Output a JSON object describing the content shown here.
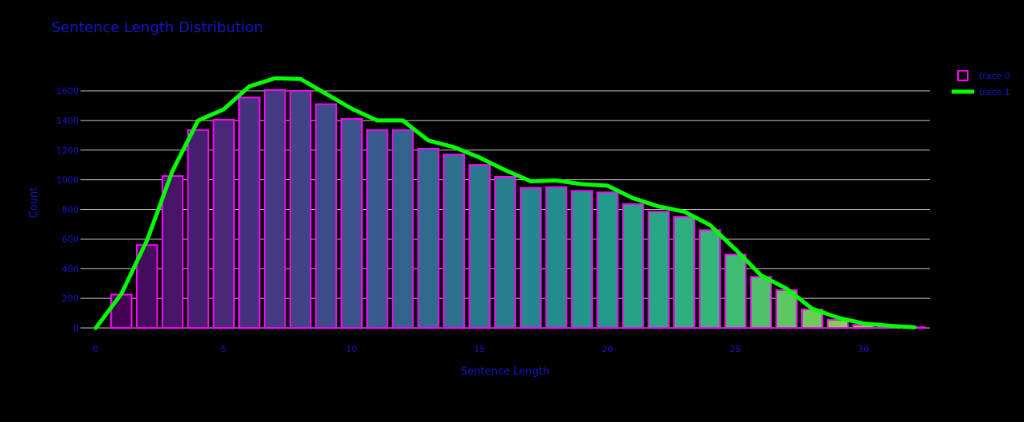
{
  "chart_data": {
    "type": "bar",
    "title": "Sentence Length Distribution",
    "xlabel": "Sentence Length",
    "ylabel": "Count",
    "xlim": [
      -0.6,
      32.6
    ],
    "ylim": [
      0,
      1600
    ],
    "x_ticks": [
      0,
      5,
      10,
      15,
      20,
      25,
      30
    ],
    "y_ticks": [
      0,
      200,
      400,
      600,
      800,
      1000,
      1200,
      1400,
      1600
    ],
    "x_tick_labels": [
      "0",
      "5",
      "10",
      "15",
      "20",
      "25",
      "30"
    ],
    "y_tick_labels": [
      "0",
      "200",
      "400",
      "600",
      "800",
      "1000",
      "1200",
      "1400",
      "1600"
    ],
    "grid": true,
    "legend_position": "top-right",
    "colors": {
      "background": "#000000",
      "text": "#1515c8",
      "grid": "#c8c8c8",
      "bar_outline": "#ff00ff",
      "line": "#00ff00",
      "colorscale": [
        "#440154",
        "#482878",
        "#3e4989",
        "#31688e",
        "#26828e",
        "#1f9e89",
        "#35b779",
        "#6ece58",
        "#b5de2b"
      ]
    },
    "series": [
      {
        "name": "trace 0",
        "kind": "bar",
        "x": [
          1,
          2,
          3,
          4,
          5,
          6,
          7,
          8,
          9,
          10,
          11,
          12,
          13,
          14,
          15,
          16,
          17,
          18,
          19,
          20,
          21,
          22,
          23,
          24,
          25,
          26,
          27,
          28,
          29,
          30,
          31,
          32
        ],
        "values": [
          225,
          560,
          1025,
          1335,
          1405,
          1555,
          1605,
          1600,
          1510,
          1410,
          1335,
          1335,
          1210,
          1170,
          1100,
          1020,
          945,
          950,
          925,
          915,
          835,
          785,
          750,
          660,
          495,
          345,
          255,
          125,
          55,
          20,
          8,
          5
        ]
      },
      {
        "name": "trace 1",
        "kind": "line",
        "x": [
          0,
          1,
          2,
          3,
          4,
          5,
          6,
          7,
          8,
          9,
          10,
          11,
          12,
          13,
          14,
          15,
          16,
          17,
          18,
          19,
          20,
          21,
          22,
          23,
          24,
          25,
          26,
          27,
          28,
          29,
          30,
          31,
          32
        ],
        "values": [
          0,
          230,
          590,
          1060,
          1400,
          1475,
          1630,
          1685,
          1680,
          1580,
          1480,
          1400,
          1400,
          1265,
          1220,
          1150,
          1065,
          990,
          995,
          970,
          960,
          875,
          820,
          785,
          695,
          530,
          355,
          265,
          130,
          70,
          30,
          15,
          5
        ]
      }
    ]
  }
}
